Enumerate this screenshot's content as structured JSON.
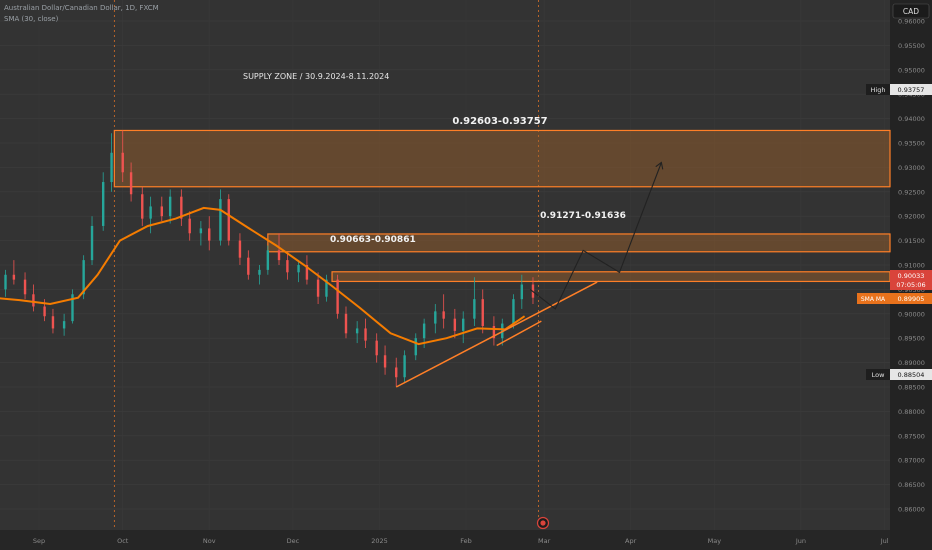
{
  "header": {
    "symbol_title": "Australian Dollar/Canadian Dollar, 1D, FXCM",
    "indicator_label": "SMA (30, close)",
    "currency_badge": "CAD"
  },
  "price_axis": {
    "ticks": [
      "0.96000",
      "0.95500",
      "0.95000",
      "0.94500",
      "0.94000",
      "0.93500",
      "0.93000",
      "0.92500",
      "0.92000",
      "0.91500",
      "0.91000",
      "0.90500",
      "0.90000",
      "0.89500",
      "0.89000",
      "0.88500",
      "0.88000",
      "0.87500",
      "0.87000",
      "0.86500",
      "0.86000"
    ],
    "ylim": [
      0.86,
      0.96
    ]
  },
  "badges": {
    "high_label": "High",
    "high_value": "0.93757",
    "low_label": "Low",
    "low_value": "0.88504",
    "last_price": "0.90033",
    "countdown": "07:05:06",
    "sma_label": "SMA MA",
    "sma_value": "0.89905"
  },
  "time_axis": {
    "labels": [
      "Sep",
      "Oct",
      "Nov",
      "Dec",
      "2025",
      "Feb",
      "Mar",
      "Apr",
      "May",
      "Jun",
      "Jul"
    ]
  },
  "annotations": {
    "supply_title": "SUPPLY ZONE / 30.9.2024-8.11.2024",
    "zone_top_label": "0.92603-0.93757",
    "zone_mid_label": "0.91271-0.91636",
    "zone_low_label": "0.90663-0.90861"
  },
  "chart_data": {
    "type": "candlestick",
    "title": "Australian Dollar/Canadian Dollar, 1D, FXCM",
    "y_range": [
      0.86,
      0.96
    ],
    "x_range": [
      "2024-08-15",
      "2025-07-20"
    ],
    "grid": true,
    "colors": {
      "up": "#26a69a",
      "down": "#ef5350",
      "sma": "#f57c00",
      "zone_fill": "#a0622a",
      "zone_stroke": "#ff7f27",
      "arrow": "#222222"
    },
    "series": [
      {
        "name": "SMA (30, close)",
        "points": [
          [
            "2024-08-15",
            0.9033
          ],
          [
            "2024-08-25",
            0.9028
          ],
          [
            "2024-09-05",
            0.902
          ],
          [
            "2024-09-15",
            0.9033
          ],
          [
            "2024-09-22",
            0.908
          ],
          [
            "2024-09-30",
            0.915
          ],
          [
            "2024-10-10",
            0.918
          ],
          [
            "2024-10-20",
            0.9195
          ],
          [
            "2024-10-30",
            0.9217
          ],
          [
            "2024-11-05",
            0.9213
          ],
          [
            "2024-11-15",
            0.9176
          ],
          [
            "2024-11-25",
            0.914
          ],
          [
            "2024-12-05",
            0.91
          ],
          [
            "2024-12-15",
            0.9057
          ],
          [
            "2024-12-25",
            0.9012
          ],
          [
            "2025-01-05",
            0.896
          ],
          [
            "2025-01-15",
            0.8938
          ],
          [
            "2025-01-25",
            0.895
          ],
          [
            "2025-02-05",
            0.897
          ],
          [
            "2025-02-15",
            0.8968
          ],
          [
            "2025-02-22",
            0.8995
          ]
        ]
      }
    ],
    "ohlc": [
      [
        "2024-08-16",
        0.904,
        0.9065,
        0.902,
        0.905
      ],
      [
        "2024-08-20",
        0.905,
        0.909,
        0.9035,
        0.908
      ],
      [
        "2024-08-23",
        0.908,
        0.911,
        0.906,
        0.907
      ],
      [
        "2024-08-27",
        0.907,
        0.9085,
        0.903,
        0.904
      ],
      [
        "2024-08-30",
        0.904,
        0.906,
        0.9005,
        0.9015
      ],
      [
        "2024-09-03",
        0.9015,
        0.903,
        0.8985,
        0.8995
      ],
      [
        "2024-09-06",
        0.8995,
        0.901,
        0.896,
        0.897
      ],
      [
        "2024-09-10",
        0.897,
        0.9,
        0.8955,
        0.8985
      ],
      [
        "2024-09-13",
        0.8985,
        0.905,
        0.898,
        0.904
      ],
      [
        "2024-09-17",
        0.904,
        0.912,
        0.903,
        0.911
      ],
      [
        "2024-09-20",
        0.911,
        0.92,
        0.91,
        0.918
      ],
      [
        "2024-09-24",
        0.918,
        0.929,
        0.917,
        0.927
      ],
      [
        "2024-09-27",
        0.927,
        0.937,
        0.925,
        0.933
      ],
      [
        "2024-10-01",
        0.933,
        0.9376,
        0.927,
        0.929
      ],
      [
        "2024-10-04",
        0.929,
        0.931,
        0.923,
        0.9245
      ],
      [
        "2024-10-08",
        0.9245,
        0.926,
        0.918,
        0.9195
      ],
      [
        "2024-10-11",
        0.9195,
        0.924,
        0.9165,
        0.922
      ],
      [
        "2024-10-15",
        0.922,
        0.924,
        0.919,
        0.92
      ],
      [
        "2024-10-18",
        0.92,
        0.9255,
        0.9185,
        0.924
      ],
      [
        "2024-10-22",
        0.924,
        0.9255,
        0.918,
        0.9195
      ],
      [
        "2024-10-25",
        0.9195,
        0.921,
        0.915,
        0.9165
      ],
      [
        "2024-10-29",
        0.9165,
        0.919,
        0.914,
        0.9175
      ],
      [
        "2024-11-01",
        0.9175,
        0.92,
        0.913,
        0.915
      ],
      [
        "2024-11-05",
        0.915,
        0.9255,
        0.914,
        0.9235
      ],
      [
        "2024-11-08",
        0.9235,
        0.9245,
        0.914,
        0.915
      ],
      [
        "2024-11-12",
        0.915,
        0.9165,
        0.91,
        0.9115
      ],
      [
        "2024-11-15",
        0.9115,
        0.913,
        0.907,
        0.908
      ],
      [
        "2024-11-19",
        0.908,
        0.91,
        0.906,
        0.909
      ],
      [
        "2024-11-22",
        0.909,
        0.914,
        0.908,
        0.913
      ],
      [
        "2024-11-26",
        0.913,
        0.9165,
        0.91,
        0.911
      ],
      [
        "2024-11-29",
        0.911,
        0.9125,
        0.907,
        0.9085
      ],
      [
        "2024-12-03",
        0.9085,
        0.911,
        0.9065,
        0.91
      ],
      [
        "2024-12-06",
        0.91,
        0.912,
        0.906,
        0.907
      ],
      [
        "2024-12-10",
        0.907,
        0.9085,
        0.902,
        0.9035
      ],
      [
        "2024-12-13",
        0.9035,
        0.908,
        0.9025,
        0.907
      ],
      [
        "2024-12-17",
        0.907,
        0.908,
        0.899,
        0.9
      ],
      [
        "2024-12-20",
        0.9,
        0.9015,
        0.895,
        0.896
      ],
      [
        "2024-12-24",
        0.896,
        0.8985,
        0.894,
        0.897
      ],
      [
        "2024-12-27",
        0.897,
        0.899,
        0.893,
        0.8945
      ],
      [
        "2024-12-31",
        0.8945,
        0.896,
        0.89,
        0.8915
      ],
      [
        "2025-01-03",
        0.8915,
        0.8935,
        0.8875,
        0.889
      ],
      [
        "2025-01-07",
        0.889,
        0.891,
        0.8851,
        0.887
      ],
      [
        "2025-01-10",
        0.887,
        0.8925,
        0.886,
        0.8915
      ],
      [
        "2025-01-14",
        0.8915,
        0.896,
        0.8905,
        0.895
      ],
      [
        "2025-01-17",
        0.895,
        0.899,
        0.893,
        0.898
      ],
      [
        "2025-01-21",
        0.898,
        0.902,
        0.896,
        0.9005
      ],
      [
        "2025-01-24",
        0.9005,
        0.904,
        0.897,
        0.899
      ],
      [
        "2025-01-28",
        0.899,
        0.901,
        0.895,
        0.8965
      ],
      [
        "2025-01-31",
        0.8965,
        0.9005,
        0.894,
        0.899
      ],
      [
        "2025-02-04",
        0.899,
        0.9075,
        0.8975,
        0.903
      ],
      [
        "2025-02-07",
        0.903,
        0.905,
        0.896,
        0.8975
      ],
      [
        "2025-02-11",
        0.8975,
        0.8995,
        0.8935,
        0.895
      ],
      [
        "2025-02-14",
        0.895,
        0.899,
        0.8935,
        0.898
      ],
      [
        "2025-02-18",
        0.898,
        0.904,
        0.897,
        0.903
      ],
      [
        "2025-02-21",
        0.903,
        0.908,
        0.901,
        0.906
      ],
      [
        "2025-02-25",
        0.906,
        0.9075,
        0.902,
        0.9033
      ]
    ],
    "zones": [
      {
        "label": "0.92603-0.93757",
        "low": 0.92603,
        "high": 0.93757,
        "from": "2024-09-28",
        "to": "2025-07-20"
      },
      {
        "label": "0.91271-0.91636",
        "low": 0.91271,
        "high": 0.91636,
        "from": "2024-11-22",
        "to": "2025-07-20"
      },
      {
        "label": "0.90663-0.90861",
        "low": 0.90663,
        "high": 0.90861,
        "from": "2024-12-15",
        "to": "2025-07-20"
      }
    ],
    "trendline": [
      [
        "2025-01-07",
        0.885
      ],
      [
        "2025-03-20",
        0.9065
      ]
    ],
    "trendline2": [
      [
        "2025-02-12",
        0.8935
      ],
      [
        "2025-02-28",
        0.8985
      ]
    ],
    "projection": [
      [
        "2025-02-24",
        0.905
      ],
      [
        "2025-03-05",
        0.901
      ],
      [
        "2025-03-15",
        0.913
      ],
      [
        "2025-03-28",
        0.9085
      ],
      [
        "2025-04-12",
        0.931
      ]
    ],
    "vertical_markers": [
      "2024-09-28",
      "2025-02-27"
    ]
  }
}
